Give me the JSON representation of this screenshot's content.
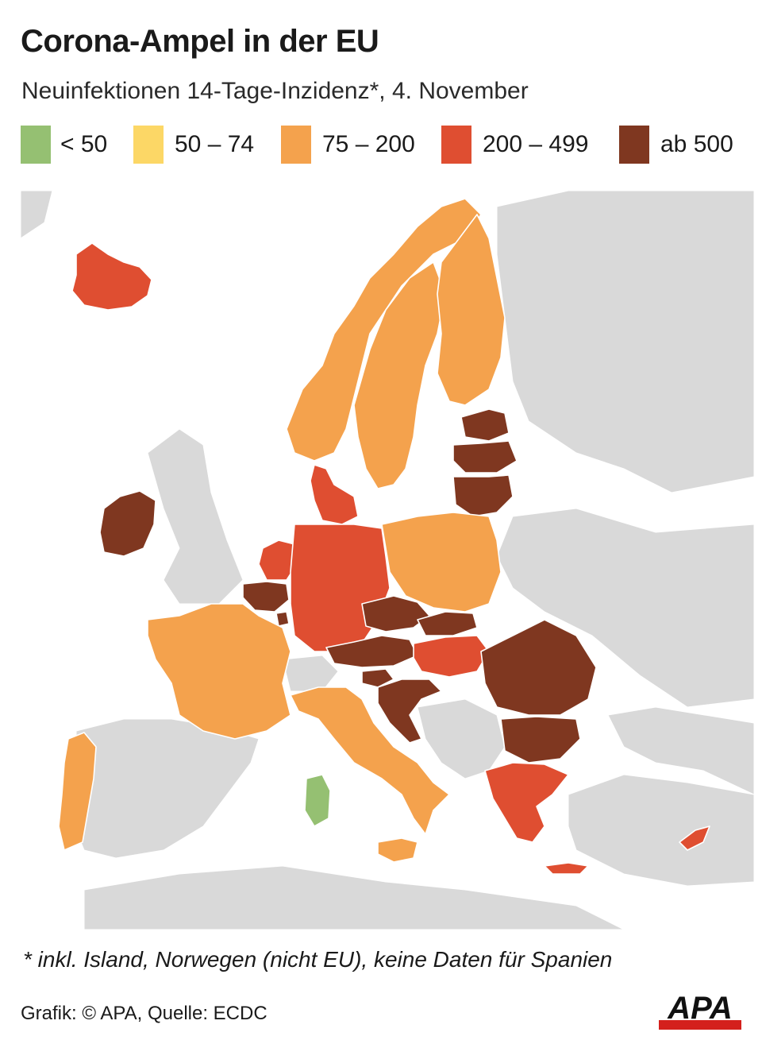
{
  "title": "Corona-Ampel in der EU",
  "subtitle": "Neuinfektionen 14-Tage-Inzidenz*, 4. November",
  "legend": [
    {
      "label": "< 50",
      "color": "#95c072"
    },
    {
      "label": "50 – 74",
      "color": "#fcd766"
    },
    {
      "label": "75 – 200",
      "color": "#f4a24d"
    },
    {
      "label": "200 – 499",
      "color": "#df4e31"
    },
    {
      "label": "ab 500",
      "color": "#7f3720"
    }
  ],
  "colors": {
    "land_no_data": "#d9d9d9",
    "sea": "#ffffff",
    "borders": "#ffffff"
  },
  "map": {
    "regions": [
      {
        "name": "Island",
        "class": "200 – 499"
      },
      {
        "name": "Irland",
        "class": "ab 500"
      },
      {
        "name": "Norwegen",
        "class": "75 – 200"
      },
      {
        "name": "Schweden",
        "class": "75 – 200"
      },
      {
        "name": "Finnland",
        "class": "75 – 200"
      },
      {
        "name": "Estland",
        "class": "ab 500"
      },
      {
        "name": "Lettland",
        "class": "ab 500"
      },
      {
        "name": "Litauen",
        "class": "ab 500"
      },
      {
        "name": "Dänemark",
        "class": "200 – 499"
      },
      {
        "name": "Niederlande",
        "class": "200 – 499"
      },
      {
        "name": "Belgien",
        "class": "ab 500"
      },
      {
        "name": "Luxemburg",
        "class": "ab 500"
      },
      {
        "name": "Frankreich",
        "class": "75 – 200"
      },
      {
        "name": "Deutschland",
        "class": "200 – 499"
      },
      {
        "name": "Polen",
        "class": "75 – 200"
      },
      {
        "name": "Tschechien",
        "class": "ab 500"
      },
      {
        "name": "Slowakei",
        "class": "ab 500"
      },
      {
        "name": "Österreich",
        "class": "ab 500"
      },
      {
        "name": "Ungarn",
        "class": "200 – 499"
      },
      {
        "name": "Slowenien",
        "class": "ab 500"
      },
      {
        "name": "Kroatien",
        "class": "ab 500"
      },
      {
        "name": "Rumänien",
        "class": "ab 500"
      },
      {
        "name": "Bulgarien",
        "class": "ab 500"
      },
      {
        "name": "Griechenland",
        "class": "200 – 499"
      },
      {
        "name": "Zypern",
        "class": "200 – 499"
      },
      {
        "name": "Italien",
        "class": "75 – 200"
      },
      {
        "name": "Sardinien",
        "class": "< 50"
      },
      {
        "name": "Portugal",
        "class": "75 – 200"
      },
      {
        "name": "Spanien",
        "class": "keine Daten"
      }
    ]
  },
  "footnote": "* inkl. Island, Norwegen (nicht EU), keine Daten für Spanien",
  "credit": "Grafik: © APA, Quelle: ECDC",
  "logo": {
    "text": "APA",
    "bar_color": "#d4201c",
    "text_color": "#111111"
  }
}
